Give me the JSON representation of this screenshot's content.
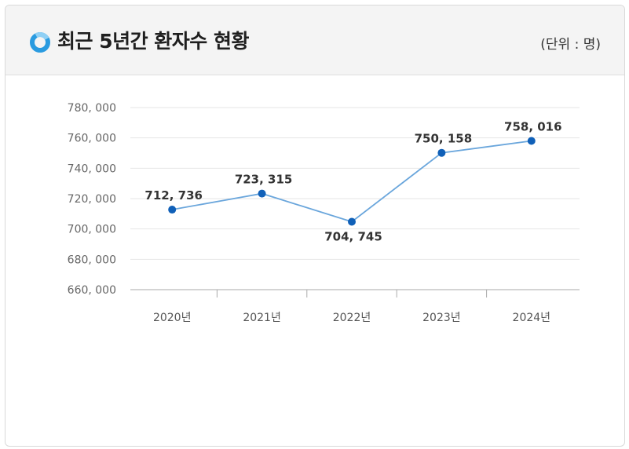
{
  "header": {
    "title": "최근 5년간 환자수 현황",
    "unit": "(단위 : 명)"
  },
  "colors": {
    "accent": "#2a9be0",
    "line": "#6aa6dc",
    "point": "#1060b8",
    "grid": "#e6e6e6"
  },
  "icons": {
    "title_icon": "ring-icon"
  },
  "chart_data": {
    "type": "line",
    "title": "최근 5년간 환자수 현황",
    "unit": "(단위 : 명)",
    "categories": [
      "2020년",
      "2021년",
      "2022년",
      "2023년",
      "2024년"
    ],
    "series": [
      {
        "values": [
          712736,
          723315,
          704745,
          750158,
          758016
        ]
      }
    ],
    "data_labels": [
      "712, 736",
      "723, 315",
      "704, 745",
      "750, 158",
      "758, 016"
    ],
    "yticks": [
      660000,
      680000,
      700000,
      720000,
      740000,
      760000,
      780000
    ],
    "ytick_labels": [
      "660, 000",
      "680, 000",
      "700, 000",
      "720, 000",
      "740, 000",
      "760, 000",
      "780, 000"
    ],
    "ylim": [
      660000,
      780000
    ],
    "grid": true,
    "legend": "none"
  }
}
